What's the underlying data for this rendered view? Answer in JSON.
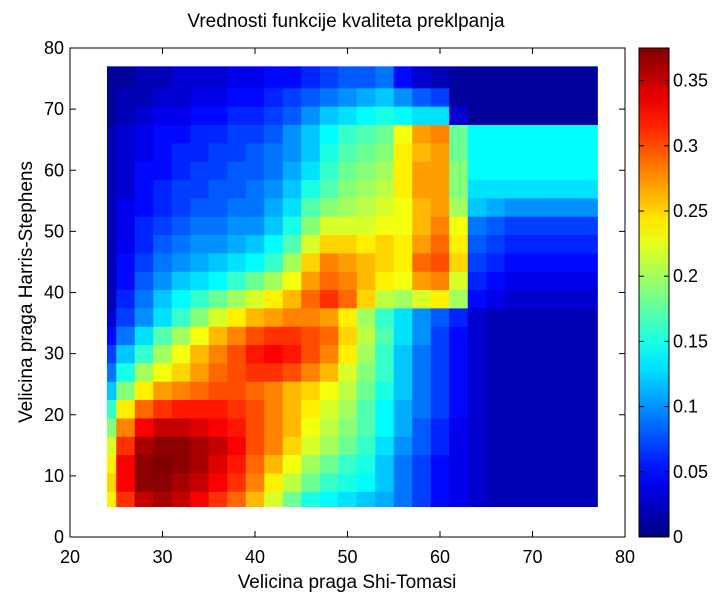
{
  "chart_data": {
    "type": "heatmap",
    "title": "Vrednosti funkcije kvaliteta preklpanja",
    "xlabel": "Velicina praga Shi-Tomasi",
    "ylabel": "Velicina praga Harris-Stephens",
    "xlim": [
      20,
      80
    ],
    "ylim": [
      0,
      80
    ],
    "x_ticks": [
      "20",
      "30",
      "40",
      "50",
      "60",
      "70",
      "80"
    ],
    "y_ticks": [
      "0",
      "10",
      "20",
      "30",
      "40",
      "50",
      "60",
      "70",
      "80"
    ],
    "x_range": [
      24,
      77
    ],
    "y_range": [
      5,
      77
    ],
    "colorscale": "jet",
    "colorbar": {
      "range": [
        0,
        0.375
      ],
      "ticks": [
        "0",
        "0.05",
        "0.1",
        "0.15",
        "0.2",
        "0.25",
        "0.3",
        "0.35"
      ]
    },
    "grid": false,
    "x": [
      24,
      26,
      28,
      30,
      32,
      34,
      36,
      38,
      40,
      42,
      44,
      46,
      48,
      50,
      52,
      54,
      56,
      58,
      60,
      62,
      64,
      66,
      68,
      70,
      72,
      74,
      76
    ],
    "y": [
      6,
      9,
      12,
      15,
      18,
      21,
      24,
      27,
      30,
      33,
      36,
      39,
      42,
      45,
      48,
      51,
      54,
      57,
      60,
      63,
      66,
      69,
      72,
      75
    ],
    "z": [
      [
        0.24,
        0.31,
        0.35,
        0.36,
        0.35,
        0.33,
        0.31,
        0.29,
        0.26,
        0.22,
        0.18,
        0.15,
        0.14,
        0.13,
        0.12,
        0.11,
        0.09,
        0.07,
        0.05,
        0.04,
        0.03,
        0.02,
        0.02,
        0.02,
        0.02,
        0.02,
        0.02
      ],
      [
        0.25,
        0.33,
        0.37,
        0.37,
        0.36,
        0.35,
        0.33,
        0.31,
        0.28,
        0.24,
        0.21,
        0.18,
        0.16,
        0.15,
        0.14,
        0.12,
        0.09,
        0.07,
        0.05,
        0.04,
        0.03,
        0.02,
        0.02,
        0.02,
        0.02,
        0.02,
        0.02
      ],
      [
        0.24,
        0.33,
        0.37,
        0.38,
        0.37,
        0.36,
        0.34,
        0.32,
        0.29,
        0.26,
        0.23,
        0.2,
        0.18,
        0.16,
        0.15,
        0.12,
        0.09,
        0.07,
        0.05,
        0.04,
        0.03,
        0.02,
        0.02,
        0.02,
        0.02,
        0.02,
        0.02
      ],
      [
        0.22,
        0.31,
        0.36,
        0.37,
        0.37,
        0.36,
        0.35,
        0.33,
        0.3,
        0.28,
        0.25,
        0.22,
        0.2,
        0.18,
        0.16,
        0.13,
        0.1,
        0.08,
        0.06,
        0.04,
        0.03,
        0.02,
        0.02,
        0.02,
        0.02,
        0.02,
        0.02
      ],
      [
        0.19,
        0.28,
        0.33,
        0.35,
        0.35,
        0.34,
        0.33,
        0.32,
        0.3,
        0.28,
        0.26,
        0.23,
        0.21,
        0.19,
        0.17,
        0.14,
        0.11,
        0.08,
        0.06,
        0.04,
        0.03,
        0.02,
        0.02,
        0.02,
        0.02,
        0.02,
        0.02
      ],
      [
        0.16,
        0.24,
        0.29,
        0.31,
        0.32,
        0.32,
        0.32,
        0.31,
        0.3,
        0.28,
        0.26,
        0.24,
        0.22,
        0.2,
        0.17,
        0.14,
        0.11,
        0.09,
        0.07,
        0.05,
        0.03,
        0.02,
        0.02,
        0.02,
        0.02,
        0.02,
        0.02
      ],
      [
        0.12,
        0.19,
        0.24,
        0.27,
        0.28,
        0.29,
        0.3,
        0.3,
        0.29,
        0.28,
        0.26,
        0.25,
        0.23,
        0.21,
        0.18,
        0.15,
        0.12,
        0.09,
        0.07,
        0.05,
        0.03,
        0.02,
        0.02,
        0.02,
        0.02,
        0.02,
        0.02
      ],
      [
        0.09,
        0.15,
        0.2,
        0.23,
        0.25,
        0.27,
        0.29,
        0.3,
        0.31,
        0.31,
        0.3,
        0.28,
        0.26,
        0.22,
        0.19,
        0.16,
        0.12,
        0.09,
        0.07,
        0.05,
        0.03,
        0.02,
        0.02,
        0.02,
        0.02,
        0.02,
        0.02
      ],
      [
        0.07,
        0.12,
        0.16,
        0.2,
        0.23,
        0.26,
        0.28,
        0.3,
        0.32,
        0.33,
        0.32,
        0.3,
        0.28,
        0.24,
        0.2,
        0.16,
        0.12,
        0.09,
        0.07,
        0.05,
        0.03,
        0.02,
        0.02,
        0.02,
        0.02,
        0.02,
        0.02
      ],
      [
        0.05,
        0.09,
        0.13,
        0.17,
        0.2,
        0.23,
        0.26,
        0.28,
        0.3,
        0.31,
        0.31,
        0.3,
        0.29,
        0.25,
        0.21,
        0.17,
        0.13,
        0.1,
        0.07,
        0.05,
        0.03,
        0.02,
        0.02,
        0.02,
        0.02,
        0.02,
        0.02
      ],
      [
        0.03,
        0.07,
        0.1,
        0.13,
        0.16,
        0.19,
        0.22,
        0.24,
        0.26,
        0.27,
        0.28,
        0.28,
        0.27,
        0.24,
        0.2,
        0.16,
        0.13,
        0.1,
        0.08,
        0.06,
        0.03,
        0.02,
        0.02,
        0.02,
        0.02,
        0.02,
        0.02
      ],
      [
        0.02,
        0.06,
        0.09,
        0.12,
        0.14,
        0.16,
        0.18,
        0.2,
        0.22,
        0.24,
        0.26,
        0.29,
        0.31,
        0.29,
        0.25,
        0.21,
        0.2,
        0.22,
        0.24,
        0.2,
        0.05,
        0.04,
        0.03,
        0.03,
        0.03,
        0.03,
        0.03
      ],
      [
        0.02,
        0.05,
        0.08,
        0.1,
        0.12,
        0.13,
        0.14,
        0.16,
        0.18,
        0.2,
        0.23,
        0.27,
        0.29,
        0.28,
        0.26,
        0.24,
        0.23,
        0.27,
        0.28,
        0.22,
        0.06,
        0.05,
        0.04,
        0.04,
        0.04,
        0.04,
        0.04
      ],
      [
        0.02,
        0.05,
        0.07,
        0.09,
        0.1,
        0.11,
        0.12,
        0.13,
        0.14,
        0.16,
        0.2,
        0.25,
        0.28,
        0.27,
        0.26,
        0.25,
        0.24,
        0.29,
        0.3,
        0.25,
        0.07,
        0.06,
        0.05,
        0.05,
        0.05,
        0.05,
        0.05
      ],
      [
        0.02,
        0.04,
        0.06,
        0.08,
        0.09,
        0.1,
        0.1,
        0.11,
        0.12,
        0.14,
        0.17,
        0.22,
        0.25,
        0.25,
        0.24,
        0.25,
        0.24,
        0.27,
        0.29,
        0.24,
        0.08,
        0.07,
        0.06,
        0.06,
        0.06,
        0.06,
        0.06
      ],
      [
        0.02,
        0.04,
        0.06,
        0.07,
        0.08,
        0.09,
        0.09,
        0.1,
        0.1,
        0.12,
        0.15,
        0.19,
        0.22,
        0.22,
        0.22,
        0.23,
        0.23,
        0.26,
        0.28,
        0.23,
        0.09,
        0.08,
        0.07,
        0.07,
        0.07,
        0.07,
        0.07
      ],
      [
        0.02,
        0.04,
        0.05,
        0.06,
        0.07,
        0.08,
        0.08,
        0.09,
        0.09,
        0.11,
        0.13,
        0.17,
        0.19,
        0.2,
        0.21,
        0.22,
        0.23,
        0.26,
        0.27,
        0.2,
        0.12,
        0.11,
        0.1,
        0.1,
        0.1,
        0.1,
        0.1
      ],
      [
        0.02,
        0.03,
        0.05,
        0.06,
        0.07,
        0.07,
        0.08,
        0.08,
        0.09,
        0.1,
        0.12,
        0.15,
        0.17,
        0.19,
        0.2,
        0.21,
        0.24,
        0.27,
        0.27,
        0.19,
        0.13,
        0.13,
        0.13,
        0.13,
        0.13,
        0.13,
        0.13
      ],
      [
        0.02,
        0.03,
        0.05,
        0.05,
        0.06,
        0.07,
        0.07,
        0.08,
        0.08,
        0.09,
        0.11,
        0.13,
        0.16,
        0.18,
        0.19,
        0.2,
        0.24,
        0.27,
        0.27,
        0.19,
        0.14,
        0.14,
        0.14,
        0.14,
        0.14,
        0.14,
        0.14
      ],
      [
        0.02,
        0.03,
        0.04,
        0.05,
        0.06,
        0.06,
        0.07,
        0.07,
        0.08,
        0.09,
        0.1,
        0.12,
        0.15,
        0.17,
        0.18,
        0.19,
        0.24,
        0.26,
        0.27,
        0.18,
        0.14,
        0.14,
        0.14,
        0.14,
        0.14,
        0.14,
        0.14
      ],
      [
        0.02,
        0.03,
        0.04,
        0.05,
        0.05,
        0.06,
        0.06,
        0.07,
        0.07,
        0.08,
        0.1,
        0.12,
        0.14,
        0.16,
        0.17,
        0.18,
        0.23,
        0.27,
        0.28,
        0.18,
        0.14,
        0.14,
        0.14,
        0.14,
        0.14,
        0.14,
        0.14
      ],
      [
        0.01,
        0.02,
        0.03,
        0.04,
        0.04,
        0.05,
        0.05,
        0.06,
        0.06,
        0.07,
        0.08,
        0.1,
        0.12,
        0.13,
        0.14,
        0.15,
        0.14,
        0.13,
        0.13,
        0.03,
        0.01,
        0.01,
        0.01,
        0.01,
        0.01,
        0.01,
        0.01
      ],
      [
        0.01,
        0.02,
        0.02,
        0.03,
        0.03,
        0.04,
        0.04,
        0.05,
        0.05,
        0.06,
        0.07,
        0.08,
        0.09,
        0.1,
        0.11,
        0.12,
        0.1,
        0.08,
        0.07,
        0.01,
        0.01,
        0.01,
        0.01,
        0.01,
        0.01,
        0.01,
        0.01
      ],
      [
        0.01,
        0.01,
        0.02,
        0.02,
        0.03,
        0.03,
        0.03,
        0.04,
        0.04,
        0.05,
        0.05,
        0.06,
        0.07,
        0.08,
        0.08,
        0.09,
        0.05,
        0.03,
        0.02,
        0.01,
        0.01,
        0.01,
        0.01,
        0.01,
        0.01,
        0.01,
        0.01
      ]
    ]
  }
}
